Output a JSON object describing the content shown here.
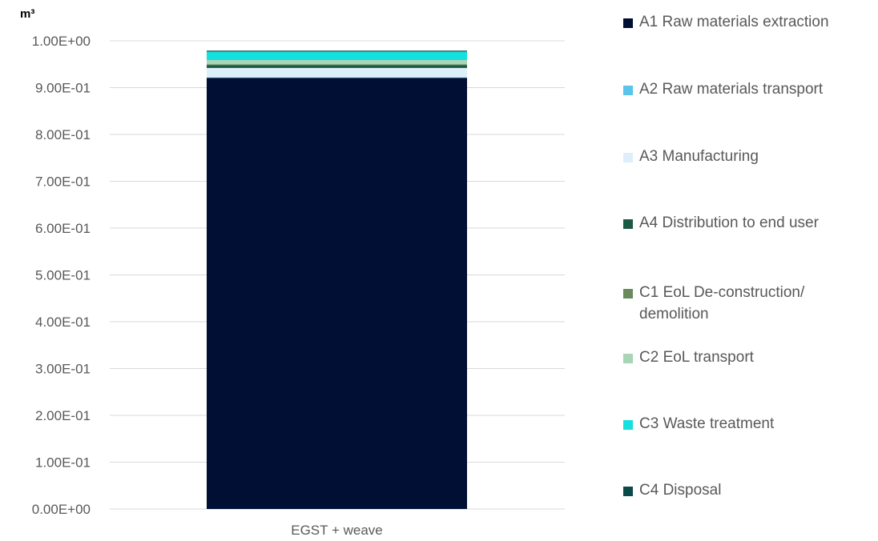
{
  "chart_data": {
    "type": "bar",
    "stacked": true,
    "unit_label": "m³",
    "categories": [
      "EGST + weave"
    ],
    "yticks": [
      "0.00E+00",
      "1.00E-01",
      "2.00E-01",
      "3.00E-01",
      "4.00E-01",
      "5.00E-01",
      "6.00E-01",
      "7.00E-01",
      "8.00E-01",
      "9.00E-01",
      "1.00E+00"
    ],
    "ylim": [
      0,
      1.0
    ],
    "grid": true,
    "legend_position": "right",
    "series": [
      {
        "name": "A1 Raw materials extraction",
        "color": "#000f33",
        "values": [
          0.921
        ]
      },
      {
        "name": "A2 Raw materials transport",
        "color": "#5bc4ea",
        "values": [
          0.001
        ]
      },
      {
        "name": "A3 Manufacturing",
        "color": "#ddf0fa",
        "values": [
          0.02
        ]
      },
      {
        "name": "A4 Distribution to end user",
        "color": "#1d5a45",
        "values": [
          0.006
        ]
      },
      {
        "name": "C1 EoL De-construction/ demolition",
        "color": "#6a8a5e",
        "values": [
          0.002
        ]
      },
      {
        "name": "C2 EoL transport",
        "color": "#a9d4b6",
        "values": [
          0.009
        ]
      },
      {
        "name": "C3 Waste treatment",
        "color": "#14e0dd",
        "values": [
          0.018
        ]
      },
      {
        "name": "C4 Disposal",
        "color": "#0c4a4a",
        "values": [
          0.002
        ]
      }
    ]
  }
}
